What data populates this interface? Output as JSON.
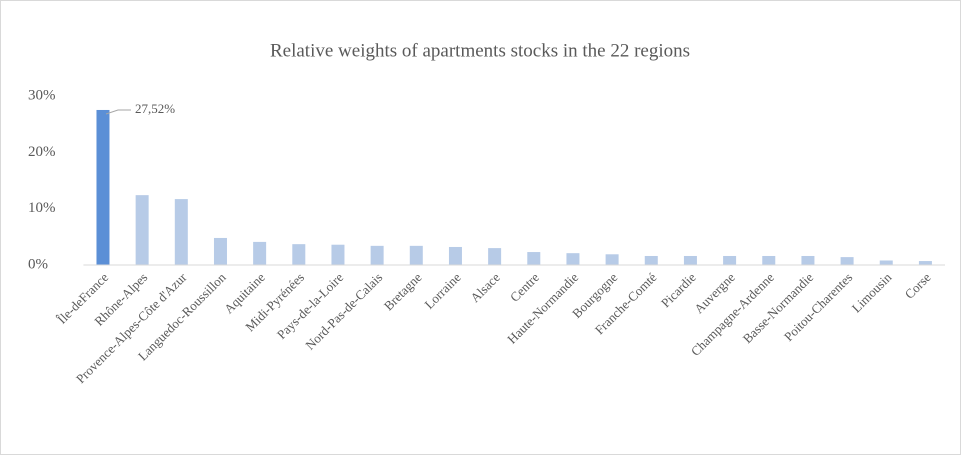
{
  "chart_data": {
    "type": "bar",
    "title": "Relative weights of apartments stocks in the 22 regions",
    "categories": [
      "Île-deFrance",
      "Rhône-Alpes",
      "Provence-Alpes-Côte d'Azur",
      "Languedoc-Roussillon",
      "Aquitaine",
      "Midi-Pyrénées",
      "Pays-de-la-Loire",
      "Nord-Pas-de-Calais",
      "Bretagne",
      "Lorraine",
      "Alsace",
      "Centre",
      "Haute-Normandie",
      "Bourgogne",
      "Franche-Comté",
      "Picardie",
      "Auvergne",
      "Champagne-Ardenne",
      "Basse-Normandie",
      "Poitou-Charentes",
      "Limousin",
      "Corse"
    ],
    "values": [
      27.52,
      12.4,
      11.7,
      4.8,
      4.1,
      3.7,
      3.6,
      3.4,
      3.4,
      3.2,
      3.0,
      2.3,
      2.1,
      1.9,
      1.6,
      1.6,
      1.6,
      1.6,
      1.6,
      1.4,
      0.8,
      0.7
    ],
    "value_labels": [
      "27,52%",
      null,
      null,
      null,
      null,
      null,
      null,
      null,
      null,
      null,
      null,
      null,
      null,
      null,
      null,
      null,
      null,
      null,
      null,
      null,
      null,
      null
    ],
    "colors": [
      "#5b8fd6",
      "#b7cbe7",
      "#b7cbe7",
      "#b7cbe7",
      "#b7cbe7",
      "#b7cbe7",
      "#b7cbe7",
      "#b7cbe7",
      "#b7cbe7",
      "#b7cbe7",
      "#b7cbe7",
      "#b7cbe7",
      "#b7cbe7",
      "#b7cbe7",
      "#b7cbe7",
      "#b7cbe7",
      "#b7cbe7",
      "#b7cbe7",
      "#b7cbe7",
      "#b7cbe7",
      "#b7cbe7",
      "#b7cbe7"
    ],
    "ylim": [
      0,
      30
    ],
    "yticks": [
      {
        "value": 0,
        "label": "0%"
      },
      {
        "value": 10,
        "label": "10%"
      },
      {
        "value": 20,
        "label": "20%"
      },
      {
        "value": 30,
        "label": "30%"
      }
    ],
    "grid": false
  }
}
